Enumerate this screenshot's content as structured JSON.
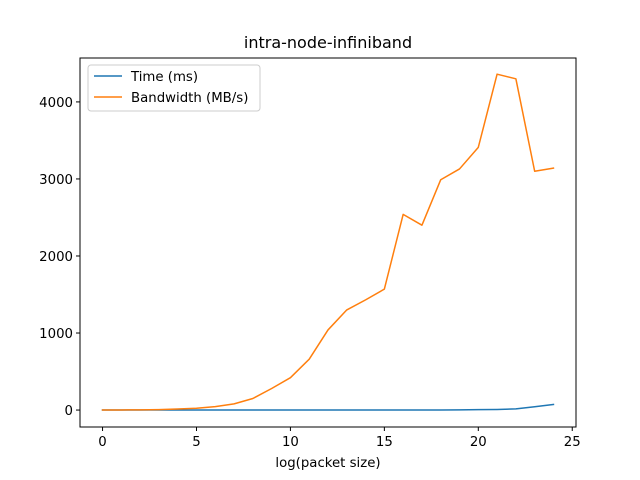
{
  "chart_data": {
    "type": "line",
    "title": "intra-node-infiniband",
    "xlabel": "log(packet size)",
    "ylabel": "",
    "xlim": [
      -1.2,
      25.2
    ],
    "ylim": [
      -220,
      4570
    ],
    "xticks": [
      0,
      5,
      10,
      15,
      20,
      25
    ],
    "yticks": [
      0,
      1000,
      2000,
      3000,
      4000
    ],
    "grid": false,
    "legend_position": "upper left",
    "x": [
      0,
      1,
      2,
      3,
      4,
      5,
      6,
      7,
      8,
      9,
      10,
      11,
      12,
      13,
      14,
      15,
      16,
      17,
      18,
      19,
      20,
      21,
      22,
      23,
      24
    ],
    "series": [
      {
        "name": "Time (ms)",
        "color": "#1f77b4",
        "values": [
          0.01,
          0.01,
          0.01,
          0.01,
          0.01,
          0.01,
          0.01,
          0.02,
          0.02,
          0.03,
          0.04,
          0.05,
          0.06,
          0.1,
          0.18,
          0.34,
          0.4,
          0.9,
          1.4,
          2.7,
          5,
          7.5,
          15,
          43,
          72
        ]
      },
      {
        "name": "Bandwidth (MB/s)",
        "color": "#ff7f0e",
        "values": [
          0,
          1,
          3,
          6,
          13,
          24,
          45,
          80,
          150,
          280,
          420,
          660,
          1040,
          1300,
          1430,
          1570,
          2540,
          2400,
          2990,
          3130,
          3410,
          4360,
          4300,
          3100,
          3140
        ]
      }
    ]
  }
}
